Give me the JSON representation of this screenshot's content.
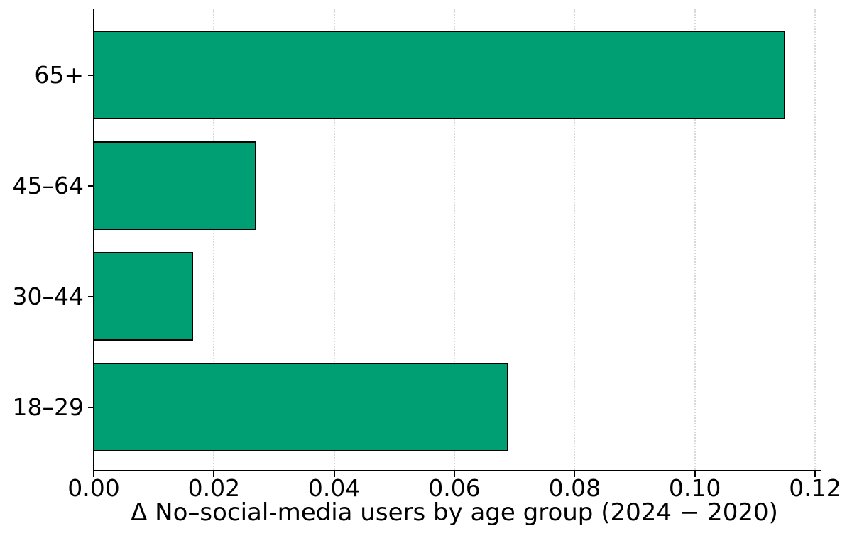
{
  "chart_data": {
    "type": "bar",
    "orientation": "horizontal",
    "title": "",
    "xlabel": "Δ No–social-media users by age group (2024 − 2020)",
    "ylabel": "",
    "categories_top_to_bottom": [
      "65+",
      "45–64",
      "30–44",
      "18–29"
    ],
    "values_top_to_bottom": [
      0.115,
      0.027,
      0.0165,
      0.069
    ],
    "xlim": [
      0,
      0.12
    ],
    "xticks": [
      0,
      0.02,
      0.04,
      0.06,
      0.08,
      0.1,
      0.12
    ],
    "xtick_labels": [
      "0.00",
      "0.02",
      "0.04",
      "0.06",
      "0.08",
      "0.10",
      "0.12"
    ],
    "grid": "vertical dotted gridlines at each x tick",
    "legend": "none",
    "colors": {
      "bar_fill": "#009E73",
      "bar_edge": "#000000",
      "grid": "#d9d9d9",
      "axis": "#000000",
      "text": "#000000",
      "background": "#ffffff"
    }
  }
}
